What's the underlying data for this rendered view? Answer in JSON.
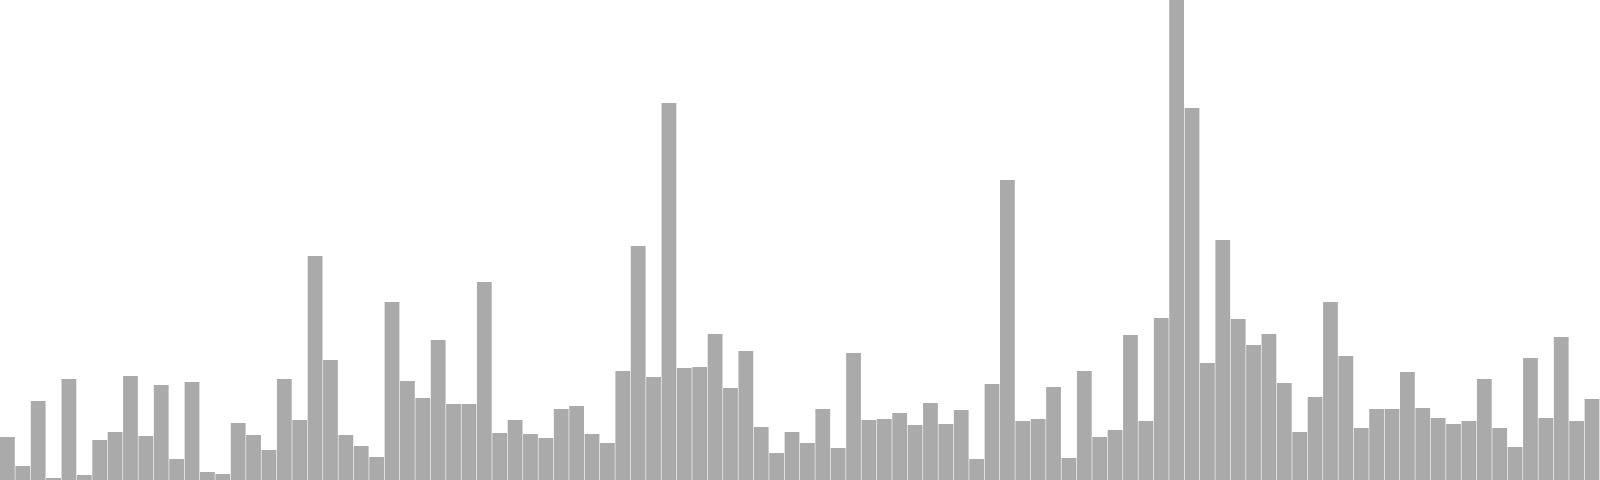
{
  "chart_data": {
    "type": "bar",
    "bar_color": "#aaaaaa",
    "ylim": [
      0,
      480
    ],
    "grid": false,
    "values": [
      43,
      14,
      79,
      2,
      101,
      5,
      40,
      48,
      104,
      44,
      95,
      21,
      98,
      8,
      6,
      57,
      45,
      30,
      101,
      60,
      224,
      120,
      45,
      34,
      23,
      178,
      99,
      82,
      140,
      76,
      76,
      198,
      47,
      60,
      46,
      42,
      71,
      74,
      46,
      37,
      109,
      234,
      103,
      377,
      112,
      113,
      146,
      92,
      129,
      53,
      27,
      48,
      37,
      71,
      32,
      127,
      60,
      61,
      67,
      55,
      77,
      56,
      70,
      21,
      96,
      300,
      59,
      61,
      93,
      22,
      109,
      43,
      50,
      145,
      59,
      162,
      480,
      372,
      117,
      240,
      161,
      135,
      146,
      97,
      48,
      83,
      178,
      124,
      52,
      71,
      71,
      108,
      72,
      62,
      56,
      59,
      101,
      52,
      33,
      122,
      62,
      143,
      59,
      81
    ]
  }
}
